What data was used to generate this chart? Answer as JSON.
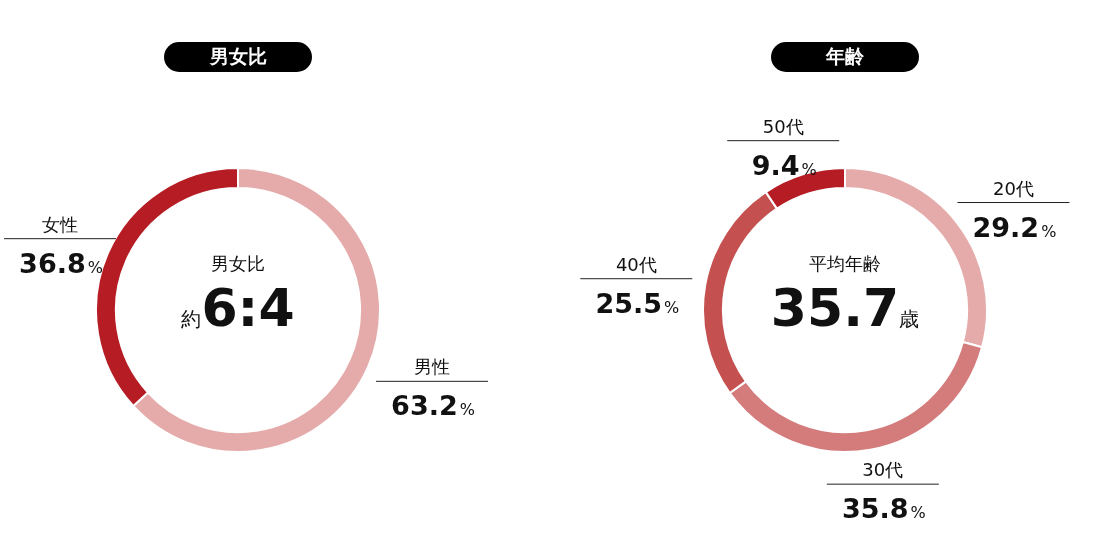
{
  "chart_data": [
    {
      "type": "donut",
      "title": "男女比",
      "categories": [
        "男性",
        "女性"
      ],
      "values": [
        63.2,
        36.8
      ],
      "colors": [
        "#e5aaaa",
        "#b61c24"
      ],
      "value_labels": [
        "63.2%",
        "36.8%"
      ],
      "legend": false,
      "annotations": [
        "男女比",
        "約6:4"
      ]
    },
    {
      "type": "donut",
      "title": "年齢",
      "categories": [
        "20代",
        "30代",
        "40代",
        "50代"
      ],
      "values": [
        29.2,
        35.8,
        25.5,
        9.4
      ],
      "colors": [
        "#e5aaaa",
        "#d47b7b",
        "#c45050",
        "#b61c24"
      ],
      "value_labels": [
        "29.2%",
        "35.8%",
        "25.5%",
        "9.4%"
      ],
      "legend": false,
      "annotations": [
        "平均年齢",
        "35.7歳"
      ]
    }
  ]
}
